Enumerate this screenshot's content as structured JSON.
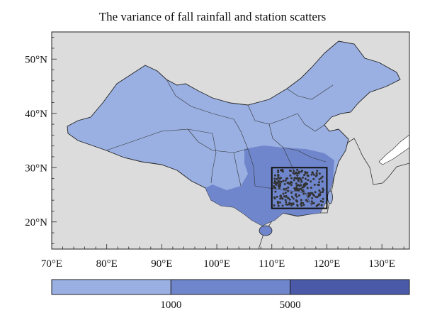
{
  "title": "The variance of fall rainfall and station scatters",
  "map": {
    "lon_range": [
      70,
      135
    ],
    "lat_range": [
      15,
      55
    ],
    "x_ticks": [
      {
        "lon": 70,
        "label": "70°E"
      },
      {
        "lon": 80,
        "label": "80°E"
      },
      {
        "lon": 90,
        "label": "90°E"
      },
      {
        "lon": 100,
        "label": "100°E"
      },
      {
        "lon": 110,
        "label": "110°E"
      },
      {
        "lon": 120,
        "label": "120°E"
      },
      {
        "lon": 130,
        "label": "130°E"
      }
    ],
    "y_ticks": [
      {
        "lat": 20,
        "label": "20°N"
      },
      {
        "lat": 30,
        "label": "30°N"
      },
      {
        "lat": 40,
        "label": "40°N"
      },
      {
        "lat": 50,
        "label": "50°N"
      }
    ],
    "study_box": {
      "lon_min": 110,
      "lon_max": 120,
      "lat_min": 22.5,
      "lat_max": 30
    },
    "colors": {
      "ocean": "#dcdcdc",
      "low": "#9ab0e2",
      "mid": "#6f86cc",
      "high": "#4a5aa8",
      "border": "#222222"
    }
  },
  "colorbar": {
    "colors": [
      "#9ab0e2",
      "#6f86cc",
      "#4a5aa8"
    ],
    "tick_labels": [
      "1000",
      "5000"
    ]
  }
}
